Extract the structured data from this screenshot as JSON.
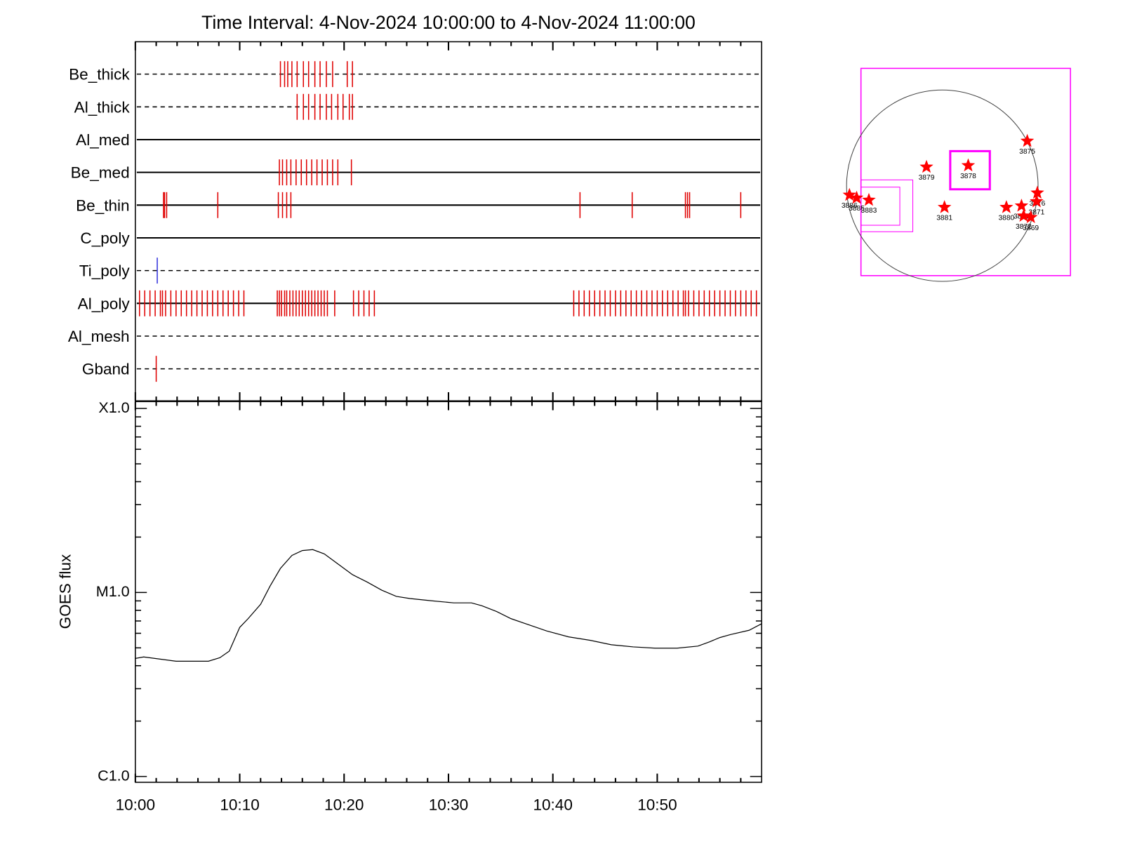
{
  "chart_data": [
    {
      "type": "event",
      "title": "Time Interval:  4-Nov-2024 10:00:00 to  4-Nov-2024 11:00:00",
      "xlim": [
        0,
        60
      ],
      "rows": [
        {
          "name": "Be_thick",
          "linestyle": "dashed",
          "color": "#e00000",
          "values": [
            13.9,
            14.3,
            14.6,
            15.0,
            15.5,
            16.1,
            16.6,
            17.2,
            17.7,
            18.3,
            18.9,
            20.3,
            20.8
          ]
        },
        {
          "name": "Al_thick",
          "linestyle": "dashed",
          "color": "#e00000",
          "values": [
            15.5,
            16.1,
            16.6,
            17.2,
            17.7,
            18.3,
            18.8,
            19.4,
            19.9,
            20.5,
            20.8
          ]
        },
        {
          "name": "Al_med",
          "linestyle": "solid",
          "color": "#e00000",
          "values": []
        },
        {
          "name": "Be_med",
          "linestyle": "solid",
          "color": "#e00000",
          "values": [
            13.8,
            14.1,
            14.5,
            14.9,
            15.4,
            15.9,
            16.4,
            16.9,
            17.4,
            17.9,
            18.4,
            18.9,
            19.4,
            20.7
          ]
        },
        {
          "name": "Be_thin",
          "linestyle": "solid",
          "color": "#e00000",
          "values": [
            2.7,
            2.8,
            3.0,
            7.9,
            13.7,
            14.1,
            14.5,
            14.9,
            42.6,
            47.6,
            52.7,
            52.9,
            53.1,
            58.0
          ]
        },
        {
          "name": "C_poly",
          "linestyle": "solid",
          "color": "#e00000",
          "values": []
        },
        {
          "name": "Ti_poly",
          "linestyle": "dashed",
          "color": "#3333dd",
          "values": [
            2.1
          ]
        },
        {
          "name": "Al_poly",
          "linestyle": "solid",
          "color": "#e00000",
          "values": [
            0.4,
            0.9,
            1.4,
            1.9,
            2.4,
            2.6,
            2.9,
            3.4,
            3.9,
            4.4,
            4.9,
            5.4,
            5.9,
            6.4,
            6.9,
            7.4,
            7.9,
            8.4,
            8.9,
            9.4,
            9.9,
            10.4,
            13.6,
            13.8,
            14.0,
            14.3,
            14.5,
            14.8,
            15.1,
            15.4,
            15.7,
            16.0,
            16.3,
            16.6,
            16.9,
            17.2,
            17.5,
            17.8,
            18.1,
            18.4,
            19.1,
            20.9,
            21.4,
            21.9,
            22.4,
            22.9,
            42.0,
            42.5,
            43.0,
            43.5,
            44.0,
            44.5,
            45.0,
            45.5,
            46.0,
            46.5,
            47.0,
            47.5,
            48.0,
            48.5,
            49.0,
            49.5,
            50.0,
            50.5,
            51.0,
            51.5,
            52.0,
            52.5,
            52.7,
            53.0,
            53.5,
            54.0,
            54.5,
            55.0,
            55.5,
            56.0,
            56.5,
            57.0,
            57.5,
            58.0,
            58.5,
            59.0,
            59.5
          ]
        },
        {
          "name": "Al_mesh",
          "linestyle": "dashed",
          "color": "#e00000",
          "values": []
        },
        {
          "name": "Gband",
          "linestyle": "dashed",
          "color": "#e00000",
          "values": [
            2.0
          ]
        }
      ]
    },
    {
      "type": "line",
      "y_label": "GOES flux",
      "color": "#000000",
      "ylog": true,
      "x": [
        0,
        0.8,
        3.9,
        7.0,
        8.1,
        9.0,
        10.0,
        10.8,
        12.0,
        12.9,
        13.9,
        15.0,
        16.0,
        17.0,
        18.1,
        19.4,
        20.8,
        22.2,
        23.6,
        25.0,
        26.3,
        28.4,
        30.5,
        32.2,
        33.2,
        34.6,
        36.0,
        37.4,
        39.4,
        41.5,
        43.6,
        45.6,
        47.7,
        49.8,
        51.9,
        53.9,
        55.0,
        56.0,
        57.0,
        58.8,
        60
      ],
      "values": [
        4.38e-06,
        4.46e-06,
        4.23e-06,
        4.23e-06,
        4.42e-06,
        4.8e-06,
        6.46e-06,
        7.2e-06,
        8.62e-06,
        1.08e-05,
        1.35e-05,
        1.59e-05,
        1.69e-05,
        1.71e-05,
        1.62e-05,
        1.43e-05,
        1.25e-05,
        1.14e-05,
        1.03e-05,
        9.52e-06,
        9.27e-06,
        9.01e-06,
        8.78e-06,
        8.78e-06,
        8.47e-06,
        7.88e-06,
        7.2e-06,
        6.76e-06,
        6.18e-06,
        5.74e-06,
        5.49e-06,
        5.2e-06,
        5.06e-06,
        4.98e-06,
        4.98e-06,
        5.11e-06,
        5.39e-06,
        5.69e-06,
        5.9e-06,
        6.23e-06,
        6.76e-06
      ],
      "xlim": [
        0,
        60
      ],
      "xticks": [
        {
          "value": 0,
          "label": "10:00"
        },
        {
          "value": 10,
          "label": "10:10"
        },
        {
          "value": 20,
          "label": "10:20"
        },
        {
          "value": 30,
          "label": "10:30"
        },
        {
          "value": 40,
          "label": "10:40"
        },
        {
          "value": 50,
          "label": "10:50"
        }
      ],
      "xminorticks": [
        2,
        4,
        6,
        8,
        12,
        14,
        16,
        18,
        22,
        24,
        26,
        28,
        32,
        34,
        36,
        38,
        42,
        44,
        46,
        48,
        52,
        54,
        56,
        58
      ],
      "ylim": [
        9.3e-07,
        0.000109
      ],
      "yticks": [
        {
          "value": 1e-06,
          "label": "C1.0"
        },
        {
          "value": 1e-05,
          "label": "M1.0"
        },
        {
          "value": 0.0001,
          "label": "X1.0"
        }
      ],
      "yminorticks": [
        2e-06,
        3e-06,
        4e-06,
        5e-06,
        6e-06,
        7e-06,
        8e-06,
        9e-06,
        2e-05,
        3e-05,
        4e-05,
        5e-05,
        6e-05,
        7e-05,
        8e-05,
        9e-05
      ]
    },
    {
      "type": "map",
      "color": "#ff0000",
      "box_color": "#ff00ff",
      "labels": [
        "3875",
        "3879",
        "3878",
        "3881",
        "3883",
        "3886",
        "3885",
        "3876",
        "3871",
        "3880",
        "3877",
        "3872",
        "3869"
      ]
    }
  ]
}
